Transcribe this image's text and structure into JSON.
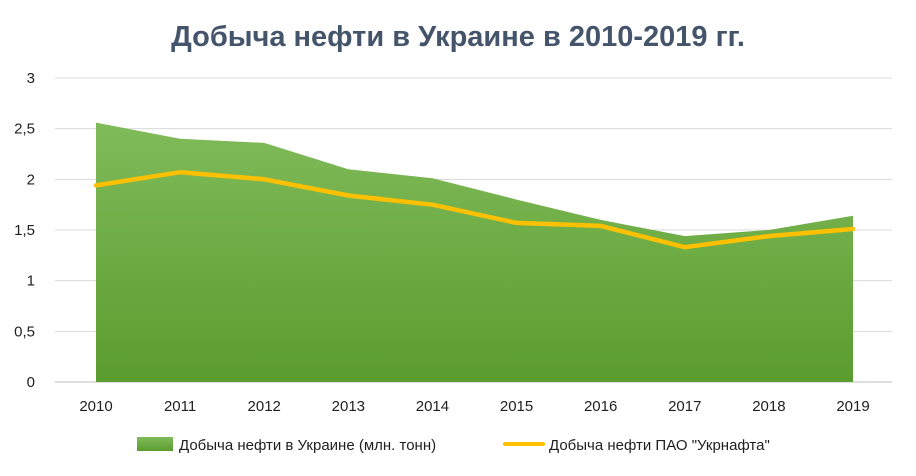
{
  "chart_data": {
    "type": "area",
    "title": "Добыча нефти в Украине в 2010-2019 гг.",
    "categories": [
      "2010",
      "2011",
      "2012",
      "2013",
      "2014",
      "2015",
      "2016",
      "2017",
      "2018",
      "2019"
    ],
    "y_ticks": [
      "0",
      "0,5",
      "1",
      "1,5",
      "2",
      "2,5",
      "3"
    ],
    "ylim": [
      0,
      3
    ],
    "grid": true,
    "legend_position": "bottom",
    "series": [
      {
        "name": "Добыча нефти в Украине (млн. тонн)",
        "kind": "area",
        "color": "#6aaa38",
        "values": [
          2.56,
          2.4,
          2.36,
          2.1,
          2.01,
          1.8,
          1.6,
          1.44,
          1.5,
          1.64
        ]
      },
      {
        "name": "Добыча нефти ПАО \"Укрнафта\"",
        "kind": "line",
        "color": "#ffc000",
        "values": [
          1.94,
          2.07,
          2.0,
          1.84,
          1.75,
          1.57,
          1.54,
          1.33,
          1.44,
          1.51
        ]
      }
    ]
  }
}
